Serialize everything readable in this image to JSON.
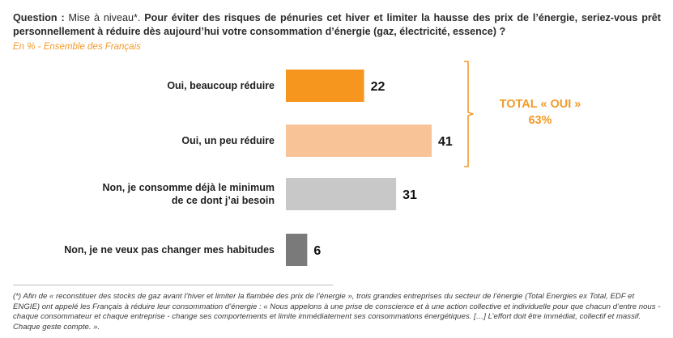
{
  "question": {
    "lead": "Question :",
    "prefix": "Mise à niveau*.",
    "text": "Pour éviter des risques de pénuries cet hiver et limiter la hausse des prix de l’énergie, seriez-vous prêt personnellement à réduire dès aujourd’hui votre consommation d’énergie (gaz, électricité, essence) ?"
  },
  "subtitle": "En % - Ensemble des Français",
  "colors": {
    "accent": "#f39a2a",
    "bar_oui_beaucoup": "#f6961e",
    "bar_oui_peu": "#f9c398",
    "bar_non_minimum": "#c8c8c8",
    "bar_non_habitudes": "#7a7a7a"
  },
  "chart_data": {
    "type": "bar",
    "orientation": "horizontal",
    "categories": [
      "Oui, beaucoup réduire",
      "Oui, un peu réduire",
      "Non, je consomme déjà le minimum de ce dont j’ai besoin",
      "Non, je ne veux pas changer mes habitudes"
    ],
    "category_lines": [
      [
        "Oui, beaucoup réduire"
      ],
      [
        "Oui, un peu réduire"
      ],
      [
        "Non, je consomme déjà le minimum",
        "de ce dont j’ai besoin"
      ],
      [
        "Non, je ne veux pas changer mes habitudes"
      ]
    ],
    "values": [
      22,
      41,
      31,
      6
    ],
    "unit": "%",
    "xlim": [
      0,
      41
    ],
    "grid": false,
    "legend": "none"
  },
  "total": {
    "label": "TOTAL « OUI »",
    "value": "63%"
  },
  "footnote": "(*) Afin de « reconstituer des stocks de gaz avant l’hiver et limiter la flambée des prix de l’énergie », trois grandes entreprises du secteur de l’énergie (Total Energies ex Total, EDF et ENGIE) ont appelé les Français à réduire leur consommation d’énergie : « Nous appelons à une prise de conscience et à une action collective et individuelle pour que chacun d’entre nous - chaque consommateur et chaque entreprise - change ses comportements et limite immédiatement ses consommations énergétiques. […] L’effort doit être immédiat, collectif et massif. Chaque geste compte. »."
}
